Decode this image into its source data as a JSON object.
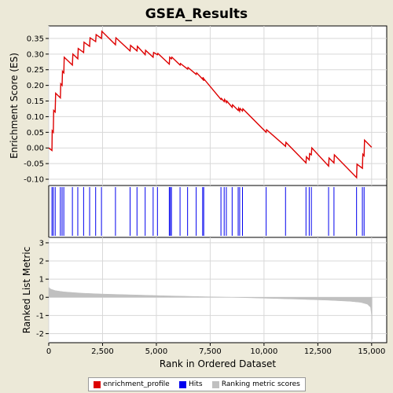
{
  "chart_data": {
    "type": "line",
    "title": "GSEA_Results",
    "xlabel": "Rank in Ordered Dataset",
    "xlim": [
      0,
      15700
    ],
    "x_ticks": [
      0,
      2500,
      5000,
      7500,
      10000,
      12500,
      15000
    ],
    "x_tick_labels": [
      "0",
      "2,500",
      "5,000",
      "7,500",
      "10,000",
      "12,500",
      "15,000"
    ],
    "panels": {
      "enrichment": {
        "ylabel": "Enrichment Score (ES)",
        "ylim": [
          -0.12,
          0.39
        ],
        "y_ticks": [
          -0.1,
          -0.05,
          0.0,
          0.05,
          0.1,
          0.15,
          0.2,
          0.25,
          0.3,
          0.35
        ],
        "y_tick_labels": [
          "-0.10",
          "-0.05",
          "0.00",
          "0.05",
          "0.10",
          "0.15",
          "0.20",
          "0.25",
          "0.30",
          "0.35"
        ],
        "grid": true
      },
      "ranked_metric": {
        "ylabel": "Ranked List Metric",
        "ylim": [
          -2.5,
          3.3
        ],
        "y_ticks": [
          -2,
          -1,
          0,
          1,
          2,
          3
        ],
        "y_tick_labels": [
          "-2",
          "-1",
          "0",
          "1",
          "2",
          "3"
        ],
        "grid": true,
        "color": "#b8b8b8"
      }
    },
    "series": [
      {
        "name": "enrichment_profile",
        "color": "#dd0000",
        "x": [
          0,
          150,
          160,
          210,
          230,
          300,
          320,
          540,
          560,
          620,
          640,
          700,
          720,
          1100,
          1120,
          1350,
          1370,
          1620,
          1640,
          1900,
          1920,
          2180,
          2200,
          2450,
          2470,
          3100,
          3120,
          3780,
          3800,
          4100,
          4120,
          4480,
          4500,
          4850,
          4870,
          5050,
          5070,
          5600,
          5620,
          5700,
          5720,
          6100,
          6120,
          6450,
          6470,
          6850,
          6870,
          7150,
          7170,
          7200,
          7220,
          8000,
          8020,
          8150,
          8170,
          8250,
          8270,
          8520,
          8540,
          8800,
          8820,
          8870,
          8890,
          9000,
          9020,
          10100,
          10120,
          11000,
          11020,
          11950,
          11970,
          12100,
          12120,
          12200,
          12220,
          13000,
          13020,
          13250,
          13270,
          14300,
          14320,
          14570,
          14590,
          14650,
          14670,
          15000
        ],
        "y": [
          0.0,
          -0.008,
          0.055,
          0.05,
          0.12,
          0.115,
          0.175,
          0.16,
          0.205,
          0.2,
          0.245,
          0.24,
          0.29,
          0.265,
          0.3,
          0.285,
          0.318,
          0.305,
          0.338,
          0.325,
          0.352,
          0.34,
          0.362,
          0.35,
          0.373,
          0.33,
          0.352,
          0.31,
          0.328,
          0.31,
          0.325,
          0.298,
          0.312,
          0.29,
          0.305,
          0.298,
          0.302,
          0.268,
          0.29,
          0.285,
          0.29,
          0.265,
          0.27,
          0.252,
          0.257,
          0.235,
          0.24,
          0.22,
          0.226,
          0.215,
          0.22,
          0.155,
          0.158,
          0.148,
          0.155,
          0.145,
          0.15,
          0.13,
          0.138,
          0.12,
          0.127,
          0.118,
          0.126,
          0.118,
          0.125,
          0.05,
          0.058,
          0.005,
          0.018,
          -0.048,
          -0.028,
          -0.038,
          -0.018,
          -0.022,
          0.0,
          -0.058,
          -0.032,
          -0.048,
          -0.022,
          -0.095,
          -0.052,
          -0.065,
          -0.02,
          -0.025,
          0.025,
          0.002
        ]
      },
      {
        "name": "Hits",
        "color": "#0000ee",
        "x": [
          150,
          210,
          300,
          540,
          620,
          700,
          1100,
          1350,
          1620,
          1900,
          2180,
          2450,
          3100,
          3780,
          4100,
          4480,
          4850,
          5050,
          5600,
          5650,
          5700,
          6100,
          6450,
          6850,
          7150,
          7200,
          8000,
          8150,
          8250,
          8520,
          8800,
          8870,
          9000,
          10100,
          11000,
          11950,
          12100,
          12200,
          13000,
          13250,
          14300,
          14570,
          14650
        ]
      },
      {
        "name": "Ranking metric scores",
        "color": "#c0c0c0",
        "profile_x": [
          0,
          100,
          300,
          700,
          1500,
          2500,
          4000,
          5500,
          7000,
          8500,
          10000,
          11500,
          13000,
          14000,
          14500,
          14800,
          14950,
          15000,
          15020
        ],
        "profile_y": [
          0.55,
          0.45,
          0.37,
          0.3,
          0.23,
          0.18,
          0.13,
          0.08,
          0.04,
          0.0,
          -0.05,
          -0.1,
          -0.16,
          -0.22,
          -0.28,
          -0.38,
          -0.55,
          -1.0,
          -2.3
        ]
      }
    ],
    "legend": {
      "placement": "bottom",
      "entries": [
        "enrichment_profile",
        "Hits",
        "Ranking metric scores"
      ]
    }
  }
}
